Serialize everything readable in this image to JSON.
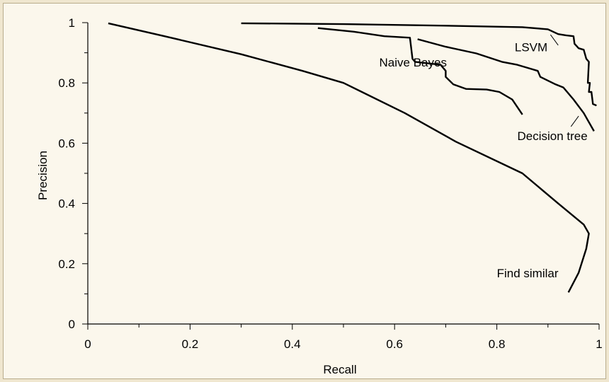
{
  "chart_data": {
    "type": "line",
    "xlabel": "Recall",
    "ylabel": "Precision",
    "xlim": [
      0,
      1
    ],
    "ylim": [
      0,
      1
    ],
    "xticks": [
      "0",
      "0.2",
      "0.4",
      "0.6",
      "0.8",
      "1"
    ],
    "yticks": [
      "0",
      "0.2",
      "0.4",
      "0.6",
      "0.8",
      "1"
    ],
    "grid": false,
    "legend": "direct-labels",
    "series": [
      {
        "name": "LSVM",
        "color": "#000000",
        "points": [
          [
            0.3,
            0.998
          ],
          [
            0.5,
            0.995
          ],
          [
            0.7,
            0.99
          ],
          [
            0.85,
            0.985
          ],
          [
            0.9,
            0.978
          ],
          [
            0.91,
            0.97
          ],
          [
            0.92,
            0.962
          ],
          [
            0.935,
            0.958
          ],
          [
            0.95,
            0.955
          ],
          [
            0.952,
            0.93
          ],
          [
            0.96,
            0.915
          ],
          [
            0.97,
            0.91
          ],
          [
            0.975,
            0.88
          ],
          [
            0.98,
            0.87
          ],
          [
            0.978,
            0.8
          ],
          [
            0.982,
            0.8
          ],
          [
            0.98,
            0.77
          ],
          [
            0.985,
            0.77
          ],
          [
            0.988,
            0.73
          ],
          [
            0.995,
            0.725
          ]
        ]
      },
      {
        "name": "Naive Bayes",
        "color": "#000000",
        "points": [
          [
            0.45,
            0.982
          ],
          [
            0.52,
            0.97
          ],
          [
            0.58,
            0.955
          ],
          [
            0.63,
            0.95
          ],
          [
            0.635,
            0.88
          ],
          [
            0.64,
            0.87
          ],
          [
            0.69,
            0.86
          ],
          [
            0.7,
            0.84
          ],
          [
            0.7,
            0.82
          ],
          [
            0.715,
            0.795
          ],
          [
            0.74,
            0.78
          ],
          [
            0.78,
            0.778
          ],
          [
            0.805,
            0.77
          ],
          [
            0.83,
            0.745
          ],
          [
            0.85,
            0.695
          ]
        ]
      },
      {
        "name": "Decision tree",
        "color": "#000000",
        "points": [
          [
            0.645,
            0.945
          ],
          [
            0.7,
            0.92
          ],
          [
            0.76,
            0.898
          ],
          [
            0.81,
            0.87
          ],
          [
            0.84,
            0.86
          ],
          [
            0.86,
            0.85
          ],
          [
            0.88,
            0.84
          ],
          [
            0.885,
            0.82
          ],
          [
            0.915,
            0.795
          ],
          [
            0.93,
            0.785
          ],
          [
            0.95,
            0.745
          ],
          [
            0.97,
            0.7
          ],
          [
            0.99,
            0.64
          ]
        ]
      },
      {
        "name": "Find similar",
        "color": "#000000",
        "points": [
          [
            0.04,
            0.998
          ],
          [
            0.15,
            0.955
          ],
          [
            0.3,
            0.895
          ],
          [
            0.42,
            0.84
          ],
          [
            0.5,
            0.8
          ],
          [
            0.62,
            0.7
          ],
          [
            0.72,
            0.605
          ],
          [
            0.85,
            0.5
          ],
          [
            0.92,
            0.4
          ],
          [
            0.97,
            0.33
          ],
          [
            0.98,
            0.3
          ],
          [
            0.975,
            0.25
          ],
          [
            0.96,
            0.17
          ],
          [
            0.94,
            0.105
          ]
        ]
      }
    ],
    "annotations": [
      {
        "series": "LSVM",
        "label_at": [
          0.835,
          0.905
        ],
        "leader": [
          [
            0.92,
            0.925
          ],
          [
            0.905,
            0.96
          ]
        ]
      },
      {
        "series": "Naive Bayes",
        "label_at": [
          0.57,
          0.855
        ],
        "leader": null
      },
      {
        "series": "Decision tree",
        "label_at": [
          0.84,
          0.61
        ],
        "leader": [
          [
            0.945,
            0.655
          ],
          [
            0.96,
            0.69
          ]
        ]
      },
      {
        "series": "Find similar",
        "label_at": [
          0.8,
          0.155
        ],
        "leader": null
      }
    ]
  }
}
